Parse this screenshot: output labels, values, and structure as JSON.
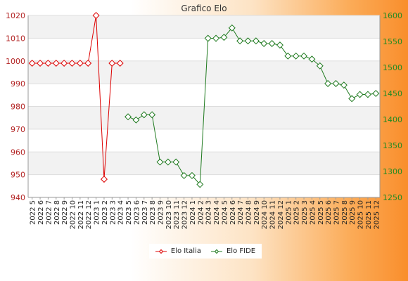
{
  "chart_data": {
    "type": "line",
    "title": "Grafico Elo",
    "x": [
      "2022 5",
      "2022 6",
      "2022 7",
      "2022 8",
      "2022 9",
      "2022 10",
      "2022 11",
      "2022 12",
      "2023 1",
      "2023 2",
      "2023 3",
      "2023 4",
      "2023 5",
      "2023 6",
      "2023 7",
      "2023 8",
      "2023 9",
      "2023 10",
      "2023 11",
      "2023 12",
      "2024 1",
      "2024 2",
      "2024 3",
      "2024 4",
      "2024 5",
      "2024 6",
      "2024 7",
      "2024 8",
      "2024 9",
      "2024 10",
      "2024 11",
      "2024 12",
      "2025 1",
      "2025 2",
      "2025 3",
      "2025 4",
      "2025 5",
      "2025 6",
      "2025 7",
      "2025 8",
      "2025 9",
      "2025 10",
      "2025 11",
      "2025 12"
    ],
    "y_left": {
      "ylim": [
        940,
        1020
      ],
      "ticks": [
        940,
        950,
        960,
        970,
        980,
        990,
        1000,
        1010,
        1020
      ]
    },
    "y_right": {
      "ylim": [
        1250,
        1600
      ],
      "ticks": [
        1250,
        1300,
        1350,
        1400,
        1450,
        1500,
        1550,
        1600
      ]
    },
    "grid": "horizontal-bands",
    "legend_position": "bottom-center",
    "series": [
      {
        "name": "Elo Italia",
        "axis": "left",
        "color": "#dd0000",
        "values": [
          999,
          999,
          999,
          999,
          999,
          999,
          999,
          999,
          1020,
          948,
          999,
          999,
          null,
          null,
          null,
          null,
          null,
          null,
          null,
          null,
          null,
          null,
          null,
          null,
          null,
          null,
          null,
          null,
          null,
          null,
          null,
          null,
          null,
          null,
          null,
          null,
          null,
          null,
          null,
          null,
          null,
          null,
          null,
          null
        ]
      },
      {
        "name": "Elo FIDE",
        "axis": "right",
        "color": "#1f7a1f",
        "values": [
          null,
          null,
          null,
          null,
          null,
          null,
          null,
          null,
          null,
          null,
          null,
          null,
          1405,
          1399,
          1409,
          1409,
          1318,
          1318,
          1318,
          1292,
          1292,
          1275,
          1556,
          1556,
          1558,
          1576,
          1551,
          1551,
          1551,
          1546,
          1546,
          1543,
          1522,
          1522,
          1522,
          1516,
          1503,
          1469,
          1469,
          1466,
          1440,
          1448,
          1448,
          1450
        ]
      }
    ]
  }
}
